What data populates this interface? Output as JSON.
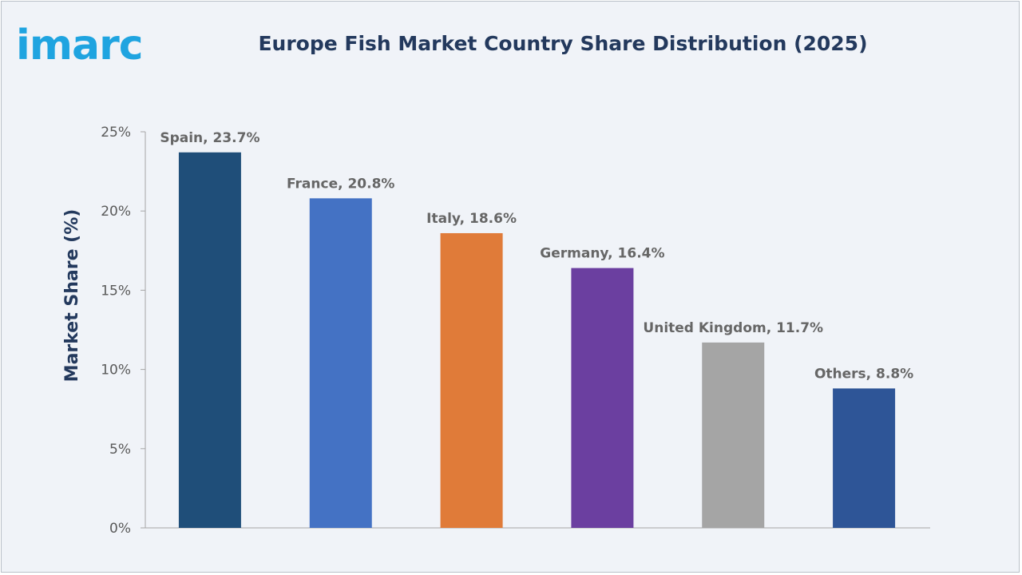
{
  "brand": {
    "logo_text": "imarc",
    "logo_color": "#1fa4e0"
  },
  "chart_data": {
    "type": "bar",
    "title": "Europe Fish Market Country Share Distribution (2025)",
    "ylabel": "Market Share (%)",
    "xlabel": "",
    "ylim": [
      0,
      25
    ],
    "yticks": [
      0,
      5,
      10,
      15,
      20,
      25
    ],
    "ytick_labels": [
      "0%",
      "5%",
      "10%",
      "15%",
      "20%",
      "25%"
    ],
    "grid": false,
    "categories": [
      "Spain",
      "France",
      "Italy",
      "Germany",
      "United Kingdom",
      "Others"
    ],
    "values": [
      23.7,
      20.8,
      18.6,
      16.4,
      11.7,
      8.8
    ],
    "data_labels": [
      "Spain, 23.7%",
      "France, 20.8%",
      "Italy, 18.6%",
      "Germany, 16.4%",
      "United Kingdom, 11.7%",
      "Others, 8.8%"
    ],
    "colors": [
      "#1f4e79",
      "#4472c4",
      "#e07b39",
      "#6b3fa0",
      "#a5a5a5",
      "#2e5597"
    ]
  }
}
